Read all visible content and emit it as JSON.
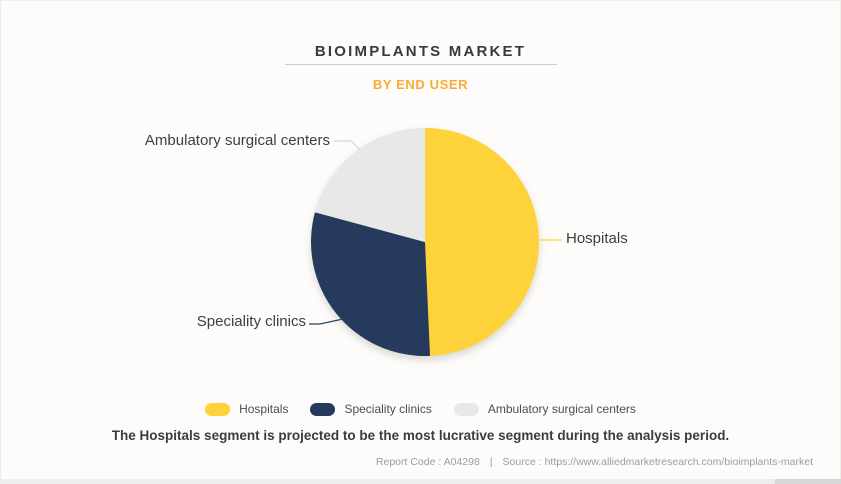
{
  "header": {
    "title": "BIOIMPLANTS MARKET",
    "subtitle": "BY END USER",
    "title_color": "#3a3a3a",
    "subtitle_color": "#faab33"
  },
  "chart_data": {
    "type": "pie",
    "title": "BIOIMPLANTS MARKET",
    "subtitle": "BY END USER",
    "start_angle_deg": 0,
    "direction": "clockwise",
    "legend_position": "bottom",
    "values_are_estimated_percent": true,
    "slices": [
      {
        "label": "Hospitals",
        "value": 49.3,
        "color": "#fdd23b",
        "callout_color": "#fdd23b"
      },
      {
        "label": "Speciality clinics",
        "value": 29.9,
        "color": "#253a5c",
        "callout_color": "#2b4166"
      },
      {
        "label": "Ambulatory surgical centers",
        "value": 20.8,
        "color": "#e8e8e8",
        "callout_color": "#d6d6d6"
      }
    ]
  },
  "caption": {
    "text": "The Hospitals segment is projected to be the most lucrative segment during the analysis period."
  },
  "footer": {
    "report_code": "Report Code : A04298",
    "separator": "|",
    "source": "Source : https://www.alliedmarketresearch.com/bioimplants-market"
  }
}
